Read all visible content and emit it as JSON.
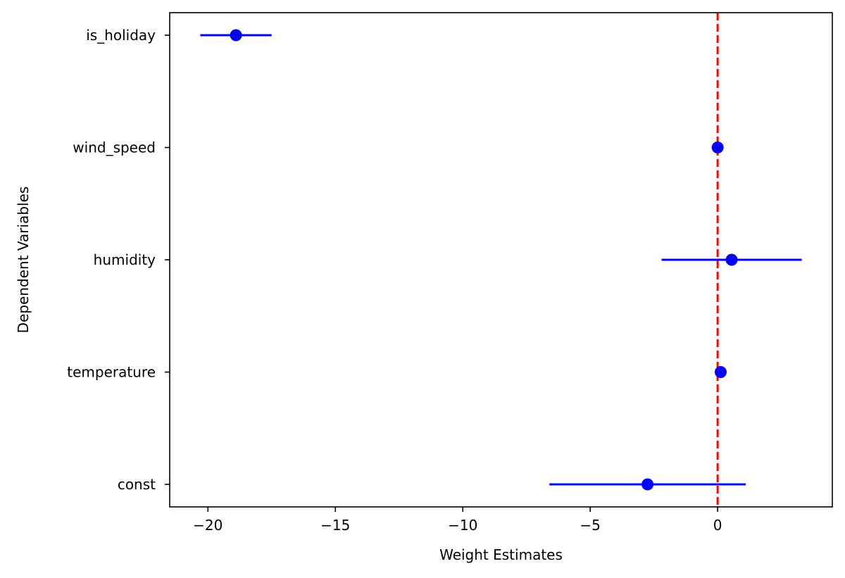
{
  "chart_data": {
    "type": "scatter",
    "title": "",
    "xlabel": "Weight Estimates",
    "ylabel": "Dependent Variables",
    "xlim": [
      -21.5,
      4.5
    ],
    "xticks": [
      -20,
      -15,
      -10,
      -5,
      0
    ],
    "xtick_labels": [
      "−20",
      "−15",
      "−10",
      "−5",
      "0"
    ],
    "categories": [
      "const",
      "temperature",
      "humidity",
      "wind_speed",
      "is_holiday"
    ],
    "estimates": [
      -2.75,
      0.12,
      0.55,
      0.0,
      -18.9
    ],
    "ci_low": [
      -6.6,
      0.12,
      -2.2,
      0.0,
      -20.3
    ],
    "ci_high": [
      1.1,
      0.12,
      3.3,
      0.0,
      -17.5
    ],
    "reference_line": {
      "x": 0,
      "color": "#ff0000",
      "style": "dashed"
    },
    "marker_color": "#0000ff",
    "errorbar_color": "#0000ff",
    "grid": false,
    "legend": "none"
  }
}
